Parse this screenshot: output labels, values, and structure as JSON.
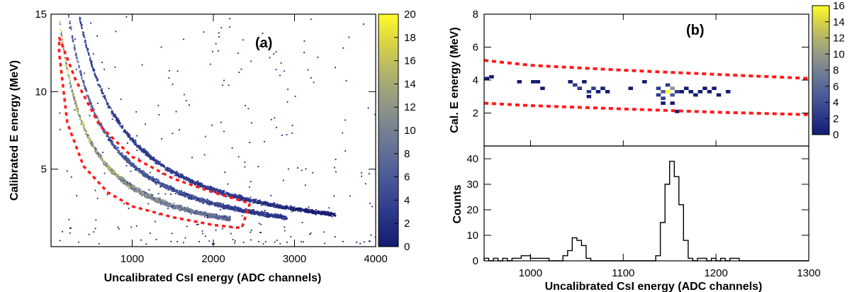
{
  "colors": {
    "palette": [
      "#141b6e",
      "#2d3a8c",
      "#4b5a98",
      "#6a7796",
      "#8d9588",
      "#b3b46a",
      "#d9d543",
      "#fffb2a"
    ],
    "cut": "#ff1a1a",
    "histogram": "#000000"
  },
  "chart_data": [
    {
      "id": "a",
      "type": "heatmap",
      "panel_label": "(a)",
      "xlabel": "Uncalibrated CsI energy (ADC channels)",
      "ylabel": "Calibrated E energy (MeV)",
      "xlim": [
        0,
        4000
      ],
      "ylim": [
        0,
        15
      ],
      "xticks": [
        1000,
        2000,
        3000,
        4000
      ],
      "yticks": [
        5,
        10,
        15
      ],
      "colorbar": {
        "min": 0,
        "max": 20,
        "ticks": [
          0,
          2,
          4,
          6,
          8,
          10,
          12,
          14,
          16,
          18,
          20
        ]
      },
      "bands": [
        {
          "k": 5200,
          "x_range": [
            80,
            2200
          ],
          "peak_count": 18
        },
        {
          "k": 7000,
          "x_range": [
            120,
            2900
          ],
          "peak_count": 9
        },
        {
          "k": 9000,
          "x_range": [
            200,
            3500
          ],
          "peak_count": 5
        }
      ],
      "cut_region": {
        "upper": [
          [
            100,
            13.5
          ],
          [
            300,
            10.8
          ],
          [
            600,
            7.8
          ],
          [
            1000,
            5.8
          ],
          [
            1500,
            4.4
          ],
          [
            2000,
            3.5
          ],
          [
            2450,
            2.8
          ]
        ],
        "lower": [
          [
            100,
            12.5
          ],
          [
            200,
            8.0
          ],
          [
            400,
            5.2
          ],
          [
            700,
            3.5
          ],
          [
            1000,
            2.6
          ],
          [
            1500,
            1.9
          ],
          [
            2000,
            1.4
          ],
          [
            2350,
            1.2
          ]
        ]
      }
    },
    {
      "id": "b-top",
      "type": "heatmap",
      "panel_label": "(b)",
      "ylabel": "Cal. E energy (MeV)",
      "xlim": [
        950,
        1300
      ],
      "ylim": [
        0,
        8
      ],
      "yticks": [
        2,
        4,
        6,
        8
      ],
      "colorbar": {
        "min": 0,
        "max": 16,
        "ticks": [
          0,
          2,
          4,
          6,
          8,
          10,
          12,
          14,
          16
        ]
      },
      "cut_upper": [
        [
          950,
          5.2
        ],
        [
          1000,
          4.9
        ],
        [
          1100,
          4.6
        ],
        [
          1200,
          4.35
        ],
        [
          1300,
          4.1
        ]
      ],
      "cut_lower": [
        [
          950,
          2.6
        ],
        [
          1000,
          2.45
        ],
        [
          1100,
          2.25
        ],
        [
          1200,
          2.05
        ],
        [
          1300,
          1.9
        ]
      ],
      "cells": [
        {
          "x": 953,
          "y": 4.1,
          "v": 1
        },
        {
          "x": 958,
          "y": 4.2,
          "v": 1
        },
        {
          "x": 988,
          "y": 3.9,
          "v": 1
        },
        {
          "x": 1003,
          "y": 3.9,
          "v": 1
        },
        {
          "x": 1008,
          "y": 3.9,
          "v": 1
        },
        {
          "x": 1013,
          "y": 3.5,
          "v": 1
        },
        {
          "x": 1043,
          "y": 3.9,
          "v": 1
        },
        {
          "x": 1048,
          "y": 3.7,
          "v": 2
        },
        {
          "x": 1053,
          "y": 3.5,
          "v": 2
        },
        {
          "x": 1058,
          "y": 3.9,
          "v": 1
        },
        {
          "x": 1063,
          "y": 3.3,
          "v": 3
        },
        {
          "x": 1068,
          "y": 3.5,
          "v": 2
        },
        {
          "x": 1063,
          "y": 3.0,
          "v": 1
        },
        {
          "x": 1073,
          "y": 3.3,
          "v": 1
        },
        {
          "x": 1078,
          "y": 3.5,
          "v": 1
        },
        {
          "x": 1083,
          "y": 3.3,
          "v": 1
        },
        {
          "x": 1108,
          "y": 3.5,
          "v": 1
        },
        {
          "x": 1123,
          "y": 3.9,
          "v": 1
        },
        {
          "x": 1138,
          "y": 3.5,
          "v": 2
        },
        {
          "x": 1143,
          "y": 3.3,
          "v": 4
        },
        {
          "x": 1148,
          "y": 3.3,
          "v": 16
        },
        {
          "x": 1153,
          "y": 3.5,
          "v": 8
        },
        {
          "x": 1148,
          "y": 3.7,
          "v": 3
        },
        {
          "x": 1153,
          "y": 3.1,
          "v": 4
        },
        {
          "x": 1143,
          "y": 2.9,
          "v": 2
        },
        {
          "x": 1138,
          "y": 3.1,
          "v": 2
        },
        {
          "x": 1158,
          "y": 3.3,
          "v": 3
        },
        {
          "x": 1143,
          "y": 2.6,
          "v": 1
        },
        {
          "x": 1153,
          "y": 2.6,
          "v": 1
        },
        {
          "x": 1158,
          "y": 2.1,
          "v": 1
        },
        {
          "x": 1163,
          "y": 3.3,
          "v": 1
        },
        {
          "x": 1168,
          "y": 3.5,
          "v": 1
        },
        {
          "x": 1173,
          "y": 3.3,
          "v": 1
        },
        {
          "x": 1178,
          "y": 3.1,
          "v": 1
        },
        {
          "x": 1183,
          "y": 3.3,
          "v": 1
        },
        {
          "x": 1188,
          "y": 3.5,
          "v": 1
        },
        {
          "x": 1193,
          "y": 3.3,
          "v": 1
        },
        {
          "x": 1198,
          "y": 3.5,
          "v": 1
        },
        {
          "x": 1203,
          "y": 3.1,
          "v": 1
        },
        {
          "x": 1213,
          "y": 3.3,
          "v": 1
        }
      ]
    },
    {
      "id": "b-bottom",
      "type": "bar",
      "xlabel": "Uncalibrated CsI energy (ADC channels)",
      "ylabel": "Counts",
      "xlim": [
        950,
        1300
      ],
      "ylim": [
        0,
        45
      ],
      "xticks": [
        1000,
        1100,
        1200,
        1300
      ],
      "yticks": [
        10,
        20,
        30,
        40
      ],
      "bin_width": 5,
      "bin_start": 950,
      "values": [
        1,
        0,
        1,
        0,
        1,
        0,
        1,
        1,
        2,
        2,
        1,
        1,
        1,
        1,
        0,
        0,
        0,
        2,
        4,
        9,
        8,
        6,
        1,
        0,
        0,
        0,
        0,
        0,
        0,
        0,
        0,
        0,
        0,
        0,
        0,
        0,
        0,
        2,
        15,
        30,
        39,
        33,
        22,
        8,
        1,
        0,
        1,
        1,
        0,
        1,
        0,
        1,
        0,
        1,
        1,
        0,
        0,
        0,
        0,
        0,
        0,
        0,
        0,
        0,
        0,
        0,
        0,
        0,
        0,
        0
      ]
    }
  ]
}
